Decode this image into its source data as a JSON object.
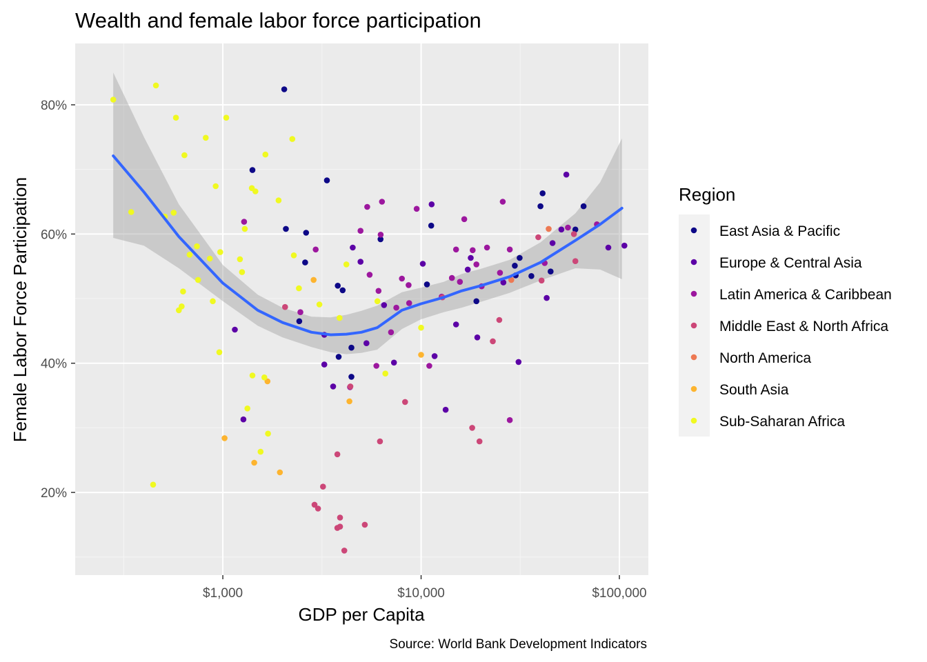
{
  "chart_data": {
    "type": "scatter",
    "title": "Wealth and female labor force participation",
    "xlabel": "GDP per Capita",
    "ylabel": "Female Labor Force Participation",
    "caption": "Source: World Bank Development Indicators",
    "x_scale": "log10",
    "xlim": [
      180,
      140000
    ],
    "ylim": [
      7.2,
      89.5
    ],
    "x_ticks": [
      {
        "value": 1000,
        "label": "$1,000"
      },
      {
        "value": 10000,
        "label": "$10,000"
      },
      {
        "value": 100000,
        "label": "$100,000"
      }
    ],
    "y_ticks": [
      {
        "value": 20,
        "label": "20%"
      },
      {
        "value": 40,
        "label": "40%"
      },
      {
        "value": 60,
        "label": "60%"
      },
      {
        "value": 80,
        "label": "80%"
      }
    ],
    "grid": true,
    "legend": {
      "title": "Region",
      "position": "right",
      "entries": [
        {
          "name": "East Asia & Pacific",
          "color": "#0d0887"
        },
        {
          "name": "Europe & Central Asia",
          "color": "#5c01a6"
        },
        {
          "name": "Latin America & Caribbean",
          "color": "#9c179e"
        },
        {
          "name": "Middle East & North Africa",
          "color": "#cc4778"
        },
        {
          "name": "North America",
          "color": "#ed7953"
        },
        {
          "name": "South Asia",
          "color": "#fdb42f"
        },
        {
          "name": "Sub-Saharan Africa",
          "color": "#f0f921"
        }
      ]
    },
    "series": [
      {
        "name": "East Asia & Pacific",
        "points": [
          [
            2040,
            82.4
          ],
          [
            1410,
            69.9
          ],
          [
            3350,
            68.3
          ],
          [
            2080,
            60.8
          ],
          [
            2630,
            60.2
          ],
          [
            2600,
            55.6
          ],
          [
            2430,
            46.5
          ],
          [
            3800,
            52.0
          ],
          [
            4020,
            51.3
          ],
          [
            4450,
            42.4
          ],
          [
            4450,
            37.9
          ],
          [
            3840,
            41.0
          ],
          [
            6240,
            59.2
          ],
          [
            11250,
            61.3
          ],
          [
            10700,
            52.2
          ],
          [
            19000,
            49.6
          ],
          [
            31400,
            56.3
          ],
          [
            29700,
            55.1
          ],
          [
            30000,
            53.6
          ],
          [
            36000,
            53.5
          ],
          [
            40000,
            64.3
          ],
          [
            41000,
            66.3
          ],
          [
            45000,
            54.2
          ],
          [
            60000,
            60.7
          ],
          [
            66000,
            64.3
          ]
        ]
      },
      {
        "name": "Europe & Central Asia",
        "points": [
          [
            1150,
            45.2
          ],
          [
            1270,
            31.3
          ],
          [
            3250,
            44.4
          ],
          [
            3250,
            39.8
          ],
          [
            3600,
            36.4
          ],
          [
            4520,
            57.9
          ],
          [
            4950,
            55.7
          ],
          [
            5300,
            43.1
          ],
          [
            6500,
            49.0
          ],
          [
            7300,
            40.1
          ],
          [
            10200,
            55.4
          ],
          [
            11300,
            64.6
          ],
          [
            11700,
            41.1
          ],
          [
            13300,
            32.8
          ],
          [
            15000,
            46.0
          ],
          [
            17200,
            54.5
          ],
          [
            17800,
            56.3
          ],
          [
            19200,
            44.0
          ],
          [
            26000,
            52.5
          ],
          [
            31000,
            40.2
          ],
          [
            43000,
            50.1
          ],
          [
            46000,
            58.6
          ],
          [
            51000,
            60.7
          ],
          [
            54000,
            69.2
          ],
          [
            88000,
            57.9
          ],
          [
            106000,
            58.2
          ]
        ]
      },
      {
        "name": "Latin America & Caribbean",
        "points": [
          [
            1280,
            61.9
          ],
          [
            2460,
            47.9
          ],
          [
            2940,
            57.6
          ],
          [
            4380,
            36.3
          ],
          [
            4950,
            60.5
          ],
          [
            5350,
            64.2
          ],
          [
            5500,
            53.7
          ],
          [
            5950,
            39.6
          ],
          [
            6100,
            51.2
          ],
          [
            6250,
            59.9
          ],
          [
            6350,
            65.0
          ],
          [
            7050,
            44.8
          ],
          [
            7500,
            48.6
          ],
          [
            8000,
            53.1
          ],
          [
            8650,
            52.1
          ],
          [
            8700,
            49.3
          ],
          [
            9500,
            63.9
          ],
          [
            11000,
            39.6
          ],
          [
            12700,
            50.3
          ],
          [
            14300,
            53.2
          ],
          [
            15000,
            57.6
          ],
          [
            15700,
            52.6
          ],
          [
            16500,
            62.3
          ],
          [
            18200,
            57.5
          ],
          [
            19000,
            55.3
          ],
          [
            20200,
            51.9
          ],
          [
            21500,
            57.9
          ],
          [
            25000,
            54.0
          ],
          [
            25800,
            65.0
          ],
          [
            28000,
            57.6
          ],
          [
            28000,
            31.2
          ],
          [
            42000,
            55.5
          ],
          [
            55000,
            61.0
          ],
          [
            77000,
            61.5
          ]
        ]
      },
      {
        "name": "Middle East & North Africa",
        "points": [
          [
            2060,
            48.7
          ],
          [
            3200,
            20.9
          ],
          [
            2900,
            18.1
          ],
          [
            3020,
            17.5
          ],
          [
            3780,
            25.9
          ],
          [
            3780,
            14.5
          ],
          [
            3900,
            14.7
          ],
          [
            3900,
            16.1
          ],
          [
            4100,
            11.0
          ],
          [
            4400,
            36.4
          ],
          [
            5200,
            15.0
          ],
          [
            6200,
            27.9
          ],
          [
            8300,
            34.0
          ],
          [
            12800,
            50.2
          ],
          [
            18100,
            30.0
          ],
          [
            19700,
            27.9
          ],
          [
            23000,
            43.4
          ],
          [
            24800,
            46.7
          ],
          [
            39000,
            59.5
          ],
          [
            40500,
            52.8
          ],
          [
            59000,
            60.0
          ],
          [
            60000,
            55.8
          ]
        ]
      },
      {
        "name": "North America",
        "points": [
          [
            28500,
            52.9
          ],
          [
            44000,
            60.8
          ]
        ]
      },
      {
        "name": "South Asia",
        "points": [
          [
            1020,
            28.4
          ],
          [
            1440,
            24.6
          ],
          [
            1680,
            37.2
          ],
          [
            1940,
            23.1
          ],
          [
            2870,
            52.9
          ],
          [
            4350,
            34.1
          ],
          [
            10000,
            41.3
          ]
        ]
      },
      {
        "name": "Sub-Saharan Africa",
        "points": [
          [
            280,
            80.8
          ],
          [
            345,
            63.4
          ],
          [
            445,
            21.2
          ],
          [
            460,
            83.0
          ],
          [
            510,
            62.7
          ],
          [
            565,
            63.3
          ],
          [
            580,
            78.0
          ],
          [
            600,
            48.2
          ],
          [
            620,
            48.8
          ],
          [
            630,
            51.1
          ],
          [
            640,
            72.2
          ],
          [
            680,
            56.8
          ],
          [
            740,
            58.1
          ],
          [
            750,
            52.9
          ],
          [
            820,
            74.9
          ],
          [
            860,
            56.2
          ],
          [
            890,
            49.6
          ],
          [
            920,
            67.4
          ],
          [
            960,
            41.7
          ],
          [
            970,
            57.2
          ],
          [
            1040,
            78.0
          ],
          [
            1220,
            56.1
          ],
          [
            1250,
            54.1
          ],
          [
            1290,
            60.8
          ],
          [
            1330,
            33.0
          ],
          [
            1400,
            67.1
          ],
          [
            1410,
            38.1
          ],
          [
            1460,
            66.6
          ],
          [
            1550,
            26.3
          ],
          [
            1620,
            37.8
          ],
          [
            1640,
            72.3
          ],
          [
            1690,
            29.1
          ],
          [
            1910,
            65.2
          ],
          [
            2240,
            74.7
          ],
          [
            2280,
            56.7
          ],
          [
            2420,
            51.6
          ],
          [
            3070,
            49.1
          ],
          [
            3880,
            47.0
          ],
          [
            4200,
            55.3
          ],
          [
            6020,
            49.6
          ],
          [
            6600,
            38.4
          ],
          [
            10000,
            45.5
          ]
        ]
      }
    ],
    "trend_line": {
      "name": "loess fit",
      "color": "#3366ff",
      "x": [
        280,
        400,
        600,
        1000,
        1500,
        2000,
        2800,
        3500,
        4200,
        5000,
        6000,
        8000,
        10000,
        13000,
        16000,
        20000,
        28000,
        40000,
        60000,
        80000,
        103000
      ],
      "y": [
        72.1,
        66.5,
        59.6,
        52.4,
        48.2,
        46.3,
        44.8,
        44.4,
        44.5,
        44.8,
        45.5,
        48.2,
        49.2,
        50.2,
        51.2,
        52.0,
        53.4,
        55.6,
        59.0,
        61.5,
        64.0
      ],
      "lower": [
        59.4,
        58.2,
        54.7,
        49.6,
        45.8,
        44.0,
        42.5,
        41.7,
        41.4,
        41.6,
        42.1,
        45.3,
        46.8,
        47.9,
        48.6,
        49.5,
        50.9,
        52.8,
        54.7,
        54.5,
        53.0
      ],
      "upper": [
        85.0,
        75.0,
        64.6,
        55.2,
        50.6,
        48.6,
        47.2,
        47.1,
        47.5,
        48.1,
        48.9,
        51.0,
        51.7,
        52.6,
        53.8,
        54.6,
        56.0,
        58.7,
        63.2,
        68.0,
        74.8
      ]
    }
  }
}
